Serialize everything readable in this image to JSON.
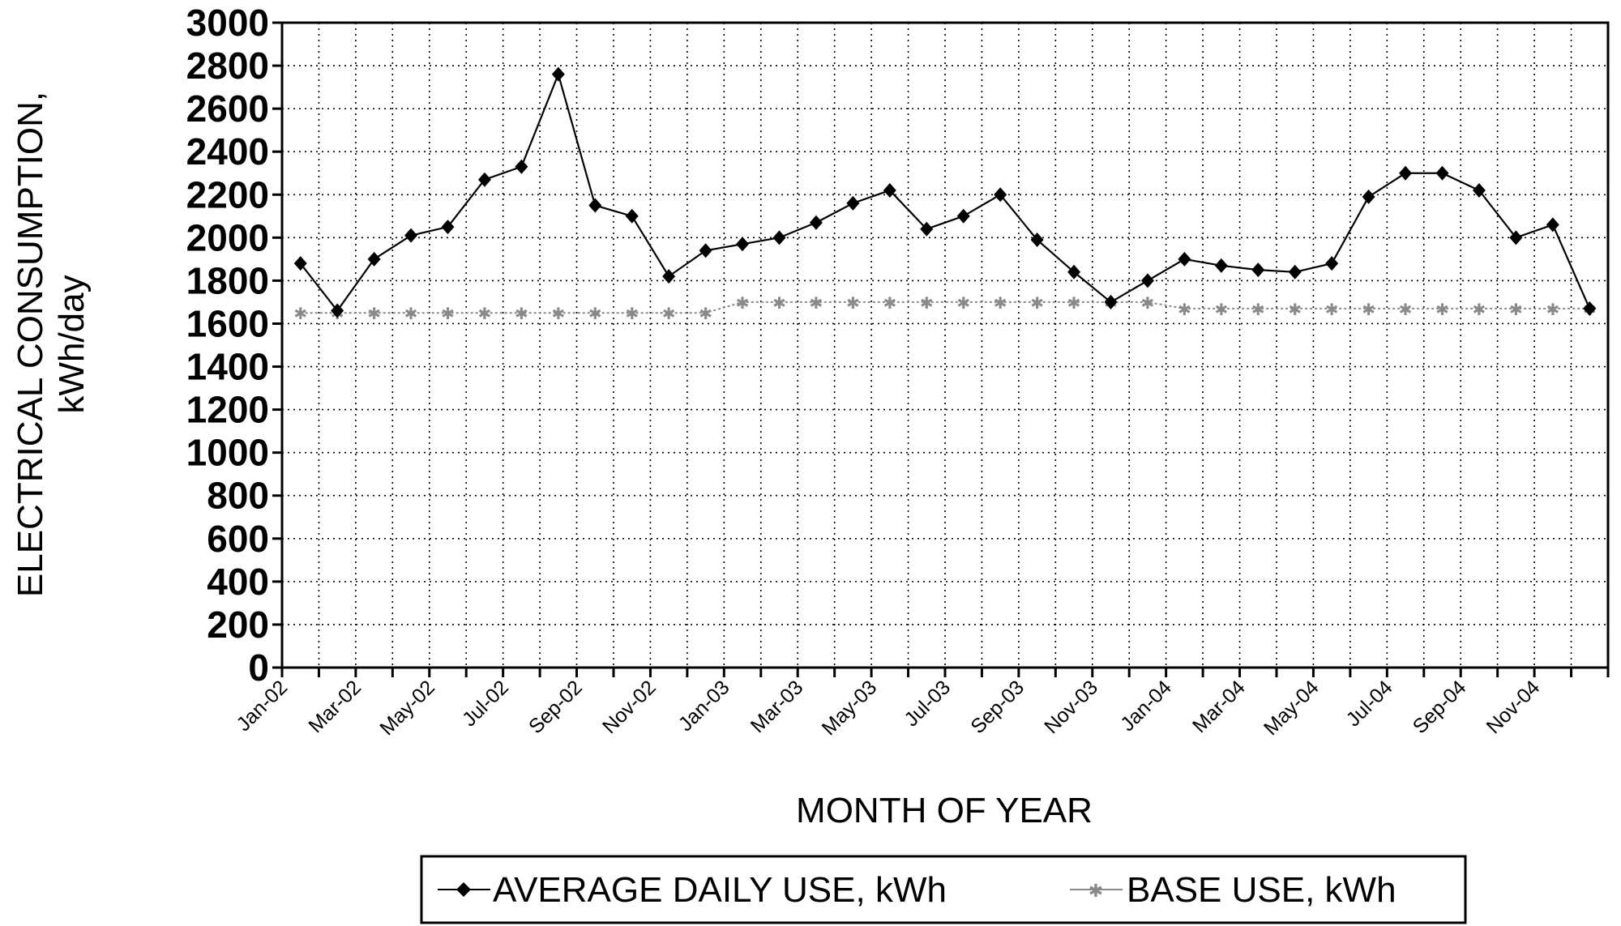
{
  "chart_data": {
    "type": "line",
    "title": "",
    "ylabel_line1": "ELECTRICAL CONSUMPTION,",
    "ylabel_line2": "kWh/day",
    "xlabel": "MONTH OF YEAR",
    "ylim": [
      0,
      3000
    ],
    "yticks": [
      0,
      200,
      400,
      600,
      800,
      1000,
      1200,
      1400,
      1600,
      1800,
      2000,
      2200,
      2400,
      2600,
      2800,
      3000
    ],
    "grid": true,
    "legend_position": "bottom",
    "categories": [
      "Jan-02",
      "Feb-02",
      "Mar-02",
      "Apr-02",
      "May-02",
      "Jun-02",
      "Jul-02",
      "Aug-02",
      "Sep-02",
      "Oct-02",
      "Nov-02",
      "Dec-02",
      "Jan-03",
      "Feb-03",
      "Mar-03",
      "Apr-03",
      "May-03",
      "Jun-03",
      "Jul-03",
      "Aug-03",
      "Sep-03",
      "Oct-03",
      "Nov-03",
      "Dec-03",
      "Jan-04",
      "Feb-04",
      "Mar-04",
      "Apr-04",
      "May-04",
      "Jun-04",
      "Jul-04",
      "Aug-04",
      "Sep-04",
      "Oct-04",
      "Nov-04",
      "Dec-04"
    ],
    "tick_labels": [
      "Jan-02",
      "Mar-02",
      "May-02",
      "Jul-02",
      "Sep-02",
      "Nov-02",
      "Jan-03",
      "Mar-03",
      "May-03",
      "Jul-03",
      "Sep-03",
      "Nov-03",
      "Jan-04",
      "Mar-04",
      "May-04",
      "Jul-04",
      "Sep-04",
      "Nov-04"
    ],
    "series": [
      {
        "name": "AVERAGE DAILY USE, kWh",
        "color": "#000000",
        "marker": "diamond",
        "values": [
          1880,
          1660,
          1900,
          2010,
          2050,
          2270,
          2330,
          2760,
          2150,
          2100,
          1820,
          1940,
          1970,
          2000,
          2070,
          2160,
          2220,
          2040,
          2100,
          2200,
          1990,
          1840,
          1700,
          1800,
          1900,
          1870,
          1850,
          1840,
          1880,
          2190,
          2300,
          2300,
          2220,
          2000,
          2060,
          1670
        ]
      },
      {
        "name": "BASE USE, kWh",
        "color": "#8a8a8a",
        "marker": "star",
        "values": [
          1650,
          1650,
          1650,
          1650,
          1650,
          1650,
          1650,
          1650,
          1650,
          1650,
          1650,
          1650,
          1700,
          1700,
          1700,
          1700,
          1700,
          1700,
          1700,
          1700,
          1700,
          1700,
          1700,
          1700,
          1670,
          1670,
          1670,
          1670,
          1670,
          1670,
          1670,
          1670,
          1670,
          1670,
          1670,
          1670
        ]
      }
    ]
  }
}
